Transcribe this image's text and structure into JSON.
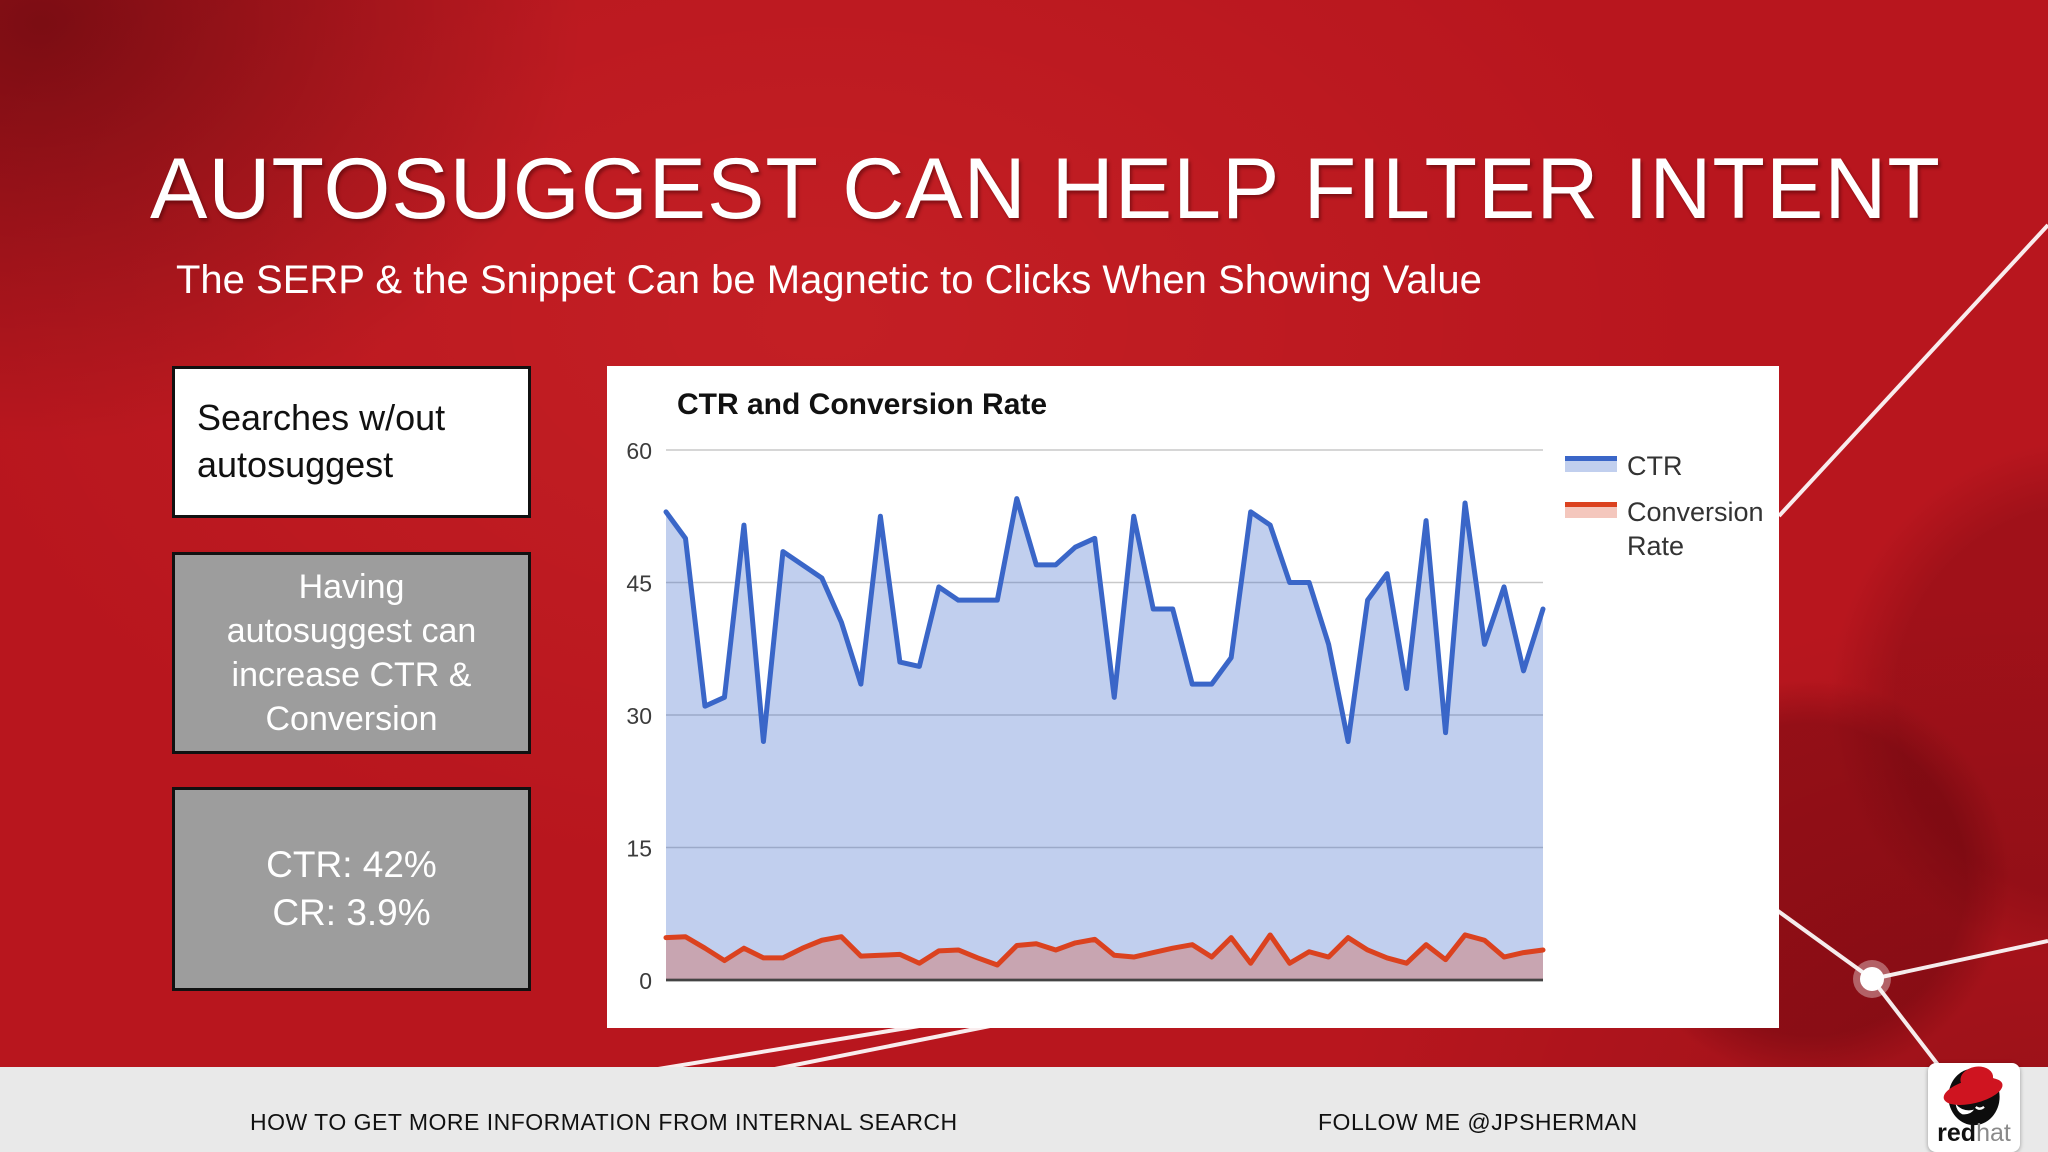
{
  "slide": {
    "title": "AUTOSUGGEST CAN HELP FILTER INTENT",
    "subtitle": "The SERP & the Snippet Can be Magnetic to Clicks When Showing Value"
  },
  "callouts": [
    {
      "text": "Searches w/out\nautosuggest"
    },
    {
      "text": "Having\nautosuggest can\nincrease CTR &\nConversion"
    },
    {
      "text": "CTR: 42%\nCR: 3.9%"
    }
  ],
  "chart_data": {
    "type": "area",
    "title": "CTR and Conversion Rate",
    "xlabel": "",
    "ylabel": "",
    "y_ticks": [
      0,
      15,
      30,
      45,
      60
    ],
    "ylim": [
      0,
      62
    ],
    "grid": true,
    "legend_position": "right",
    "x_axis_labels": [],
    "series": [
      {
        "name": "CTR",
        "line_color": "#3a66c8",
        "fill_color": "rgba(61,106,201,0.32)",
        "values": [
          53,
          50,
          31,
          32,
          51.5,
          27,
          48.5,
          47,
          45.5,
          40.5,
          33.5,
          52.5,
          36,
          35.5,
          44.5,
          43,
          43,
          43,
          54.5,
          47,
          47,
          49,
          50,
          32,
          52.5,
          42,
          42,
          33.5,
          33.5,
          36.5,
          53,
          51.5,
          45,
          45,
          38,
          27,
          43,
          46,
          33,
          52,
          28,
          54,
          38,
          44.5,
          35,
          42
        ]
      },
      {
        "name": "Conversion Rate",
        "line_color": "#db421f",
        "fill_color": "rgba(219,68,36,0.30)",
        "values": [
          4.8,
          4.9,
          3.6,
          2.2,
          3.6,
          2.5,
          2.5,
          3.6,
          4.5,
          4.9,
          2.7,
          2.8,
          2.9,
          1.9,
          3.3,
          3.4,
          2.5,
          1.7,
          3.9,
          4.1,
          3.4,
          4.2,
          4.6,
          2.8,
          2.6,
          3.1,
          3.6,
          4.0,
          2.6,
          4.8,
          1.9,
          5.1,
          1.9,
          3.2,
          2.6,
          4.8,
          3.4,
          2.5,
          1.9,
          4.0,
          2.3,
          5.1,
          4.5,
          2.6,
          3.1,
          3.4
        ]
      }
    ]
  },
  "footer": {
    "left_text": "HOW TO GET MORE INFORMATION FROM INTERNAL SEARCH",
    "right_text": "FOLLOW ME @JPSHERMAN",
    "logo": {
      "bold": "red",
      "light": "hat"
    }
  },
  "colors": {
    "background_red": "#b8161e",
    "accent_blue": "#3a66c8",
    "accent_red_orange": "#db421f",
    "footer_gray": "#e9e9e9",
    "callout_gray": "#9d9d9d"
  }
}
